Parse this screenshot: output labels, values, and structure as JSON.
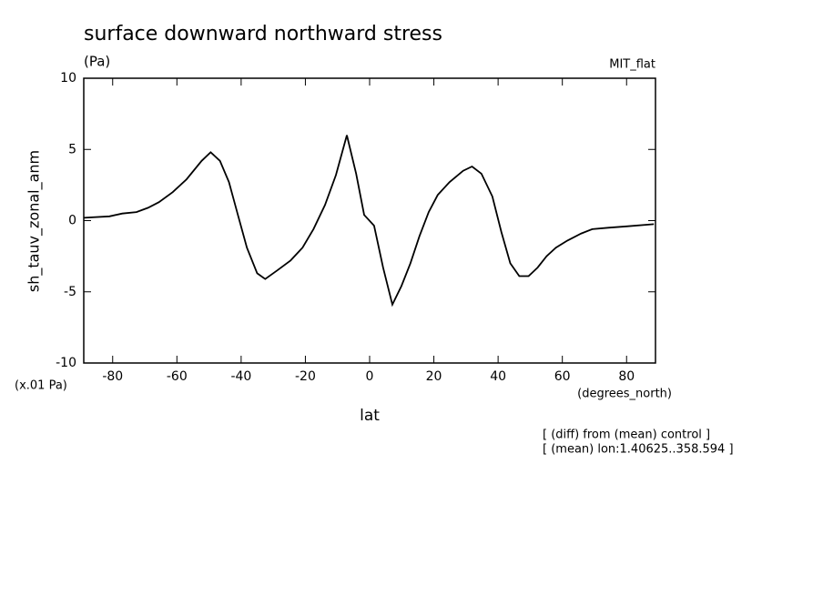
{
  "chart_data": {
    "type": "line",
    "title": "surface downward northward stress",
    "units": "(Pa)",
    "dataset": "MIT_flat",
    "ylabel": "sh_tauv_zonal_anm",
    "yscale_note": "(x.01 Pa)",
    "xunits": "(degrees_north)",
    "xlabel": "lat",
    "notes": [
      "[ (diff) from (mean) control ]",
      "[ (mean) lon:1.40625..358.594 ]"
    ],
    "x": [
      -89,
      -81,
      -77,
      -72.6,
      -69,
      -65.6,
      -61.3,
      -57,
      -52.3,
      -49.5,
      -46.6,
      -43.8,
      -41,
      -38.2,
      -35,
      -32.5,
      -28.8,
      -24.6,
      -20.9,
      -17.5,
      -13.9,
      -10.5,
      -7.1,
      -4.2,
      -1.7,
      1.4,
      4.2,
      7.1,
      9.9,
      12.7,
      15.5,
      18.4,
      21.2,
      24.9,
      29.1,
      31.9,
      34.8,
      38.2,
      41,
      43.8,
      46.6,
      49.5,
      52.3,
      55.1,
      58,
      61.6,
      65.9,
      69.3,
      74.3,
      80,
      88.5
    ],
    "series": [
      {
        "color": "#000000",
        "values": [
          0.2,
          0.3,
          0.5,
          0.6,
          0.9,
          1.3,
          2.0,
          2.9,
          4.2,
          4.8,
          4.2,
          2.7,
          0.4,
          -1.9,
          -3.7,
          -4.1,
          -3.5,
          -2.8,
          -1.9,
          -0.6,
          1.1,
          3.2,
          6.0,
          3.3,
          0.4,
          -0.35,
          -3.3,
          -5.9,
          -4.6,
          -3.0,
          -1.1,
          0.6,
          1.8,
          2.7,
          3.5,
          3.8,
          3.3,
          1.7,
          -0.8,
          -3.0,
          -3.9,
          -3.9,
          -3.3,
          -2.5,
          -1.9,
          -1.4,
          -0.9,
          -0.6,
          -0.5,
          -0.4,
          -0.25
        ]
      }
    ],
    "xlim": [
      -89,
      89
    ],
    "xticks": [
      -80,
      -60,
      -40,
      -20,
      0,
      20,
      40,
      60,
      80
    ],
    "ylim": [
      -10,
      10
    ],
    "yticks": [
      -10,
      -5,
      0,
      5,
      10
    ]
  }
}
